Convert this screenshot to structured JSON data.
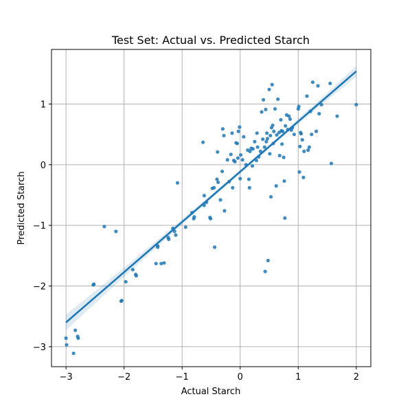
{
  "chart_data": {
    "type": "scatter",
    "title": "Test Set: Actual vs. Predicted Starch",
    "xlabel": "Actual Starch",
    "ylabel": "Predicted Starch",
    "xlim": [
      -3.25,
      2.25
    ],
    "ylim": [
      -3.33,
      1.9
    ],
    "xticks": [
      -3,
      -2,
      -1,
      0,
      1,
      2
    ],
    "yticks": [
      -3,
      -2,
      -1,
      0,
      1
    ],
    "xtick_labels": [
      "−3",
      "−2",
      "−1",
      "0",
      "1",
      "2"
    ],
    "ytick_labels": [
      "−3",
      "−2",
      "−1",
      "0",
      "1"
    ],
    "grid": true,
    "colors": {
      "points": "#1f77b4",
      "line": "#1f77b4",
      "band": "#1f77b4"
    },
    "regression": {
      "x": [
        -3.0,
        2.0
      ],
      "y": [
        -2.6,
        1.54
      ],
      "ci_halfwidth": [
        0.13,
        0.03,
        0.09
      ]
    },
    "points": [
      {
        "x": -3.0,
        "y": -2.86
      },
      {
        "x": -2.99,
        "y": -2.97
      },
      {
        "x": -2.87,
        "y": -3.11
      },
      {
        "x": -2.84,
        "y": -2.73
      },
      {
        "x": -2.8,
        "y": -2.83
      },
      {
        "x": -2.79,
        "y": -2.86
      },
      {
        "x": -2.52,
        "y": -1.97
      },
      {
        "x": -2.53,
        "y": -1.98
      },
      {
        "x": -2.34,
        "y": -1.02
      },
      {
        "x": -2.14,
        "y": -1.1
      },
      {
        "x": -2.05,
        "y": -2.25
      },
      {
        "x": -2.04,
        "y": -2.24
      },
      {
        "x": -1.97,
        "y": -1.93
      },
      {
        "x": -1.85,
        "y": -1.73
      },
      {
        "x": -1.8,
        "y": -1.81
      },
      {
        "x": -1.79,
        "y": -1.83
      },
      {
        "x": -1.45,
        "y": -1.63
      },
      {
        "x": -1.42,
        "y": -1.34
      },
      {
        "x": -1.42,
        "y": -1.36
      },
      {
        "x": -1.36,
        "y": -1.63
      },
      {
        "x": -1.31,
        "y": -1.62
      },
      {
        "x": -1.24,
        "y": -1.2
      },
      {
        "x": -1.23,
        "y": -1.23
      },
      {
        "x": -1.16,
        "y": -1.05
      },
      {
        "x": -1.13,
        "y": -1.1
      },
      {
        "x": -1.11,
        "y": -1.16
      },
      {
        "x": -1.08,
        "y": -0.3
      },
      {
        "x": -0.94,
        "y": -1.03
      },
      {
        "x": -0.83,
        "y": -0.79
      },
      {
        "x": -0.79,
        "y": -0.86
      },
      {
        "x": -0.8,
        "y": -0.89
      },
      {
        "x": -0.64,
        "y": 0.37
      },
      {
        "x": -0.62,
        "y": -0.67
      },
      {
        "x": -0.62,
        "y": -0.51
      },
      {
        "x": -0.58,
        "y": -0.62
      },
      {
        "x": -0.52,
        "y": -0.87
      },
      {
        "x": -0.51,
        "y": -0.89
      },
      {
        "x": -0.48,
        "y": -0.39
      },
      {
        "x": -0.45,
        "y": -0.38
      },
      {
        "x": -0.44,
        "y": -1.36
      },
      {
        "x": -0.4,
        "y": -0.24
      },
      {
        "x": -0.38,
        "y": -0.29
      },
      {
        "x": -0.39,
        "y": 0.21
      },
      {
        "x": -0.34,
        "y": -0.58
      },
      {
        "x": -0.31,
        "y": -0.11
      },
      {
        "x": -0.3,
        "y": 0.59
      },
      {
        "x": -0.28,
        "y": 0.48
      },
      {
        "x": -0.27,
        "y": -0.76
      },
      {
        "x": -0.22,
        "y": 0.08
      },
      {
        "x": -0.19,
        "y": -0.28
      },
      {
        "x": -0.16,
        "y": 0.17
      },
      {
        "x": -0.14,
        "y": 0.52
      },
      {
        "x": -0.13,
        "y": -0.38
      },
      {
        "x": -0.11,
        "y": 0.07
      },
      {
        "x": -0.09,
        "y": 0.05
      },
      {
        "x": -0.07,
        "y": 0.36
      },
      {
        "x": -0.05,
        "y": 0.35
      },
      {
        "x": -0.04,
        "y": 0.11
      },
      {
        "x": -0.03,
        "y": 0.55
      },
      {
        "x": -0.01,
        "y": 0.62
      },
      {
        "x": 0.0,
        "y": -0.23
      },
      {
        "x": 0.01,
        "y": 0.16
      },
      {
        "x": 0.04,
        "y": 0.08
      },
      {
        "x": 0.06,
        "y": 0.46
      },
      {
        "x": 0.1,
        "y": -0.0
      },
      {
        "x": 0.13,
        "y": 0.24
      },
      {
        "x": 0.15,
        "y": -0.24
      },
      {
        "x": 0.16,
        "y": -0.38
      },
      {
        "x": 0.17,
        "y": 0.22
      },
      {
        "x": 0.19,
        "y": 0.27
      },
      {
        "x": 0.21,
        "y": -0.02
      },
      {
        "x": 0.22,
        "y": 0.26
      },
      {
        "x": 0.25,
        "y": 0.38
      },
      {
        "x": 0.28,
        "y": 0.07
      },
      {
        "x": 0.29,
        "y": 0.52
      },
      {
        "x": 0.3,
        "y": 0.29
      },
      {
        "x": 0.32,
        "y": 0.13
      },
      {
        "x": 0.35,
        "y": 0.22
      },
      {
        "x": 0.37,
        "y": 0.87
      },
      {
        "x": 0.39,
        "y": 0.42
      },
      {
        "x": 0.4,
        "y": 1.07
      },
      {
        "x": 0.42,
        "y": 0.29
      },
      {
        "x": 0.43,
        "y": -1.76
      },
      {
        "x": 0.44,
        "y": 0.91
      },
      {
        "x": 0.45,
        "y": 0.38
      },
      {
        "x": 0.46,
        "y": 0.52
      },
      {
        "x": 0.47,
        "y": 0.43
      },
      {
        "x": 0.48,
        "y": -1.58
      },
      {
        "x": 0.5,
        "y": 1.24
      },
      {
        "x": 0.51,
        "y": 0.18
      },
      {
        "x": 0.52,
        "y": 0.48
      },
      {
        "x": 0.53,
        "y": -0.53
      },
      {
        "x": 0.54,
        "y": 0.61
      },
      {
        "x": 0.55,
        "y": 1.32
      },
      {
        "x": 0.56,
        "y": 0.65
      },
      {
        "x": 0.57,
        "y": 0.35
      },
      {
        "x": 0.58,
        "y": 0.55
      },
      {
        "x": 0.6,
        "y": 0.92
      },
      {
        "x": 0.62,
        "y": -0.35
      },
      {
        "x": 0.63,
        "y": 0.49
      },
      {
        "x": 0.65,
        "y": 1.08
      },
      {
        "x": 0.67,
        "y": 0.53
      },
      {
        "x": 0.68,
        "y": 0.15
      },
      {
        "x": 0.7,
        "y": 0.74
      },
      {
        "x": 0.71,
        "y": 0.56
      },
      {
        "x": 0.72,
        "y": 0.34
      },
      {
        "x": 0.73,
        "y": 0.55
      },
      {
        "x": 0.75,
        "y": 0.12
      },
      {
        "x": 0.76,
        "y": -0.27
      },
      {
        "x": 0.77,
        "y": -0.88
      },
      {
        "x": 0.78,
        "y": 0.64
      },
      {
        "x": 0.8,
        "y": 0.82
      },
      {
        "x": 0.82,
        "y": 0.58
      },
      {
        "x": 0.84,
        "y": 0.8
      },
      {
        "x": 0.86,
        "y": 0.75
      },
      {
        "x": 0.88,
        "y": 0.57
      },
      {
        "x": 0.9,
        "y": 0.61
      },
      {
        "x": 0.93,
        "y": 0.5
      },
      {
        "x": 1.0,
        "y": 0.92
      },
      {
        "x": 1.01,
        "y": 0.96
      },
      {
        "x": 1.02,
        "y": -0.12
      },
      {
        "x": 1.03,
        "y": 0.3
      },
      {
        "x": 1.04,
        "y": 0.53
      },
      {
        "x": 1.05,
        "y": 0.51
      },
      {
        "x": 1.07,
        "y": 0.41
      },
      {
        "x": 1.09,
        "y": -0.21
      },
      {
        "x": 1.1,
        "y": 0.22
      },
      {
        "x": 1.15,
        "y": 1.13
      },
      {
        "x": 1.17,
        "y": 0.24
      },
      {
        "x": 1.19,
        "y": 0.29
      },
      {
        "x": 1.21,
        "y": 0.88
      },
      {
        "x": 1.23,
        "y": 0.5
      },
      {
        "x": 1.25,
        "y": 1.36
      },
      {
        "x": 1.31,
        "y": 0.55
      },
      {
        "x": 1.34,
        "y": 1.3
      },
      {
        "x": 1.36,
        "y": 0.84
      },
      {
        "x": 1.4,
        "y": 0.99
      },
      {
        "x": 1.55,
        "y": 1.34
      },
      {
        "x": 1.57,
        "y": 0.02
      },
      {
        "x": 1.67,
        "y": 0.8
      },
      {
        "x": 2.0,
        "y": 0.99
      }
    ]
  }
}
